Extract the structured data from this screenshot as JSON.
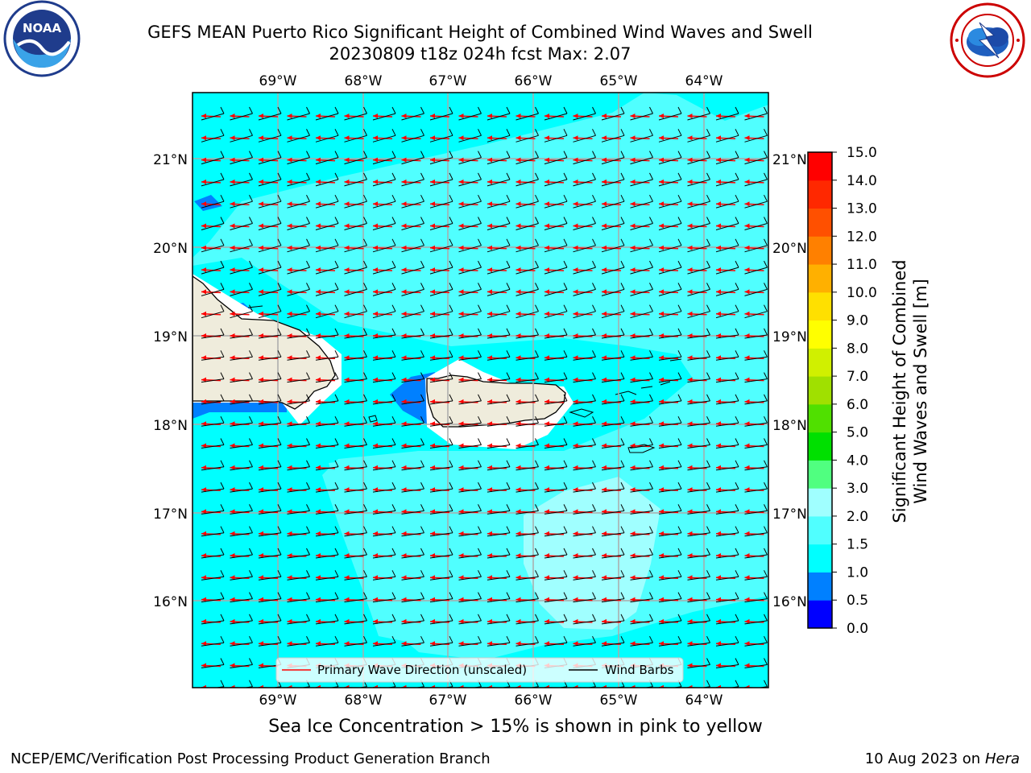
{
  "title_line1": "GEFS MEAN Puerto Rico Significant Height of Combined Wind Waves and Swell",
  "title_line2": "20230809 t18z 024h fcst   Max: 2.07",
  "logos": {
    "left": "noaa-logo",
    "left_text": "NOAA",
    "right": "nws-logo"
  },
  "map": {
    "lon_ticks": [
      "69°W",
      "68°W",
      "67°W",
      "66°W",
      "65°W",
      "64°W"
    ],
    "lat_ticks": [
      "21°N",
      "20°N",
      "19°N",
      "18°N",
      "17°N",
      "16°N"
    ],
    "legend": {
      "wave_label": "Primary Wave Direction (unscaled)",
      "barb_label": "Wind Barbs",
      "wave_color": "#ff0000",
      "barb_color": "#000000"
    },
    "land_color": "#efecdc",
    "dominant_wave_height_m": "1.5–2.0",
    "wind_direction": "easterly"
  },
  "colorbar": {
    "label_line1": "Significant Height of Combined",
    "label_line2": "Wind Waves and Swell [m]",
    "ticks": [
      "0.0",
      "0.5",
      "1.0",
      "1.5",
      "2.0",
      "3.0",
      "4.0",
      "5.0",
      "6.0",
      "7.0",
      "8.0",
      "9.0",
      "10.0",
      "11.0",
      "12.0",
      "13.0",
      "14.0",
      "15.0"
    ],
    "colors": [
      "#0000ff",
      "#0080ff",
      "#00ffff",
      "#50ffff",
      "#a0ffff",
      "#50ff80",
      "#00e000",
      "#50e000",
      "#a0e000",
      "#d0f000",
      "#ffff00",
      "#ffe000",
      "#ffb000",
      "#ff8000",
      "#ff5000",
      "#ff2800",
      "#ff0000"
    ]
  },
  "footer": {
    "ice_note": "Sea Ice Concentration > 15% is shown in pink to yellow",
    "credit_left": "NCEP/EMC/Verification Post Processing Product Generation Branch",
    "credit_date": "10 Aug 2023 on",
    "credit_machine": "Hera"
  }
}
